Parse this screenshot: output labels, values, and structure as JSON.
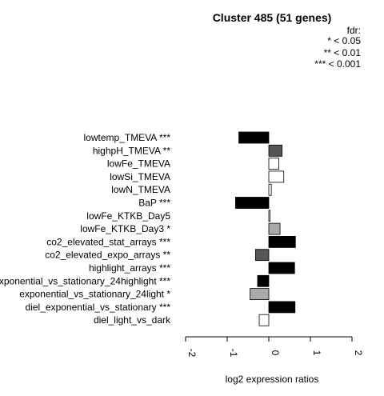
{
  "chart_data": {
    "type": "bar",
    "orientation": "horizontal",
    "title": "Cluster 485 (51 genes)",
    "xlabel": "log2 expression ratios",
    "xlim": [
      -2,
      2
    ],
    "x_ticks": [
      "-2",
      "-1",
      "0",
      "1",
      "2"
    ],
    "legend": {
      "title": "fdr:",
      "entries": [
        "* < 0.05",
        "** < 0.01",
        "*** < 0.001"
      ]
    },
    "categories": [
      "lowtemp_TMEVA ***",
      "highpH_TMEVA **",
      "lowFe_TMEVA",
      "lowSi_TMEVA",
      "lowN_TMEVA",
      "BaP ***",
      "lowFe_KTKB_Day5",
      "lowFe_KTKB_Day3 *",
      "co2_elevated_stat_arrays ***",
      "co2_elevated_expo_arrays **",
      "highlight_arrays ***",
      "exponential_vs_stationary_24highlight ***",
      "exponential_vs_stationary_24light *",
      "diel_exponential_vs_stationary ***",
      "diel_light_vs_dark"
    ],
    "values": [
      -0.72,
      0.32,
      0.24,
      0.36,
      0.06,
      -0.8,
      0.03,
      0.27,
      0.64,
      -0.32,
      0.62,
      -0.27,
      -0.45,
      0.63,
      -0.23
    ],
    "colors": [
      "#000000",
      "#555555",
      "#ffffff",
      "#ffffff",
      "#ffffff",
      "#000000",
      "#ffffff",
      "#aaaaaa",
      "#000000",
      "#555555",
      "#000000",
      "#000000",
      "#aaaaaa",
      "#000000",
      "#ffffff"
    ]
  }
}
